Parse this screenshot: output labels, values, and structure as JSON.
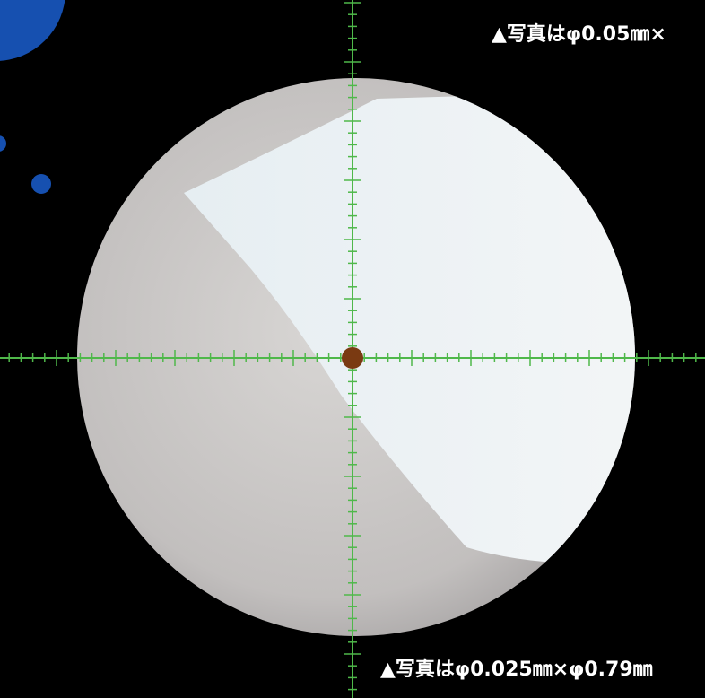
{
  "captions": {
    "top": "▲写真はφ0.05㎜×",
    "bottom": "▲写真はφ0.025㎜×φ0.79㎜"
  }
}
